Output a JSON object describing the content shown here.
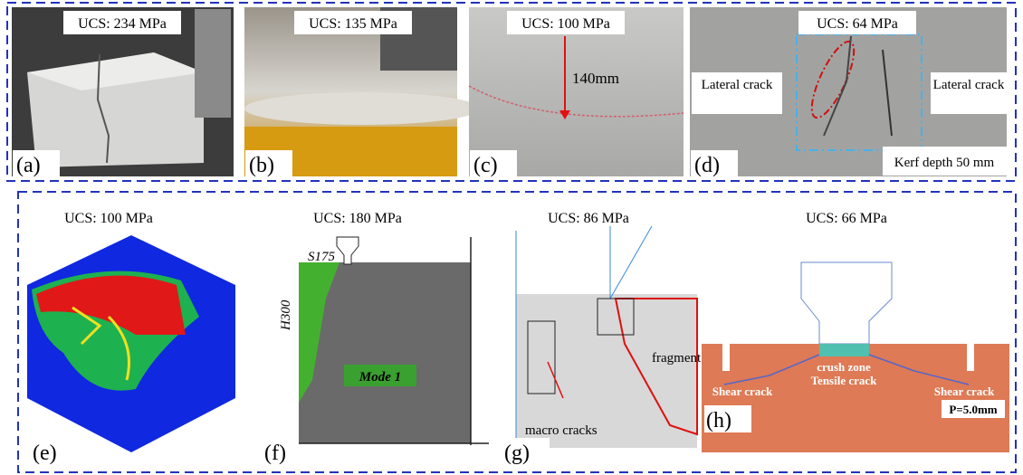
{
  "panels": [
    {
      "label": "(a)",
      "ucs": "UCS: 234 MPa"
    },
    {
      "label": "(b)",
      "ucs": "UCS: 135 MPa"
    },
    {
      "label": "(c)",
      "ucs": "UCS: 100 MPa",
      "annotations": [
        "140mm"
      ]
    },
    {
      "label": "(d)",
      "ucs": "UCS: 64 MPa",
      "annotations": [
        "Lateral crack",
        "Lateral crack",
        "Kerf depth 50 mm"
      ]
    },
    {
      "label": "(e)",
      "ucs": "UCS: 100 MPa"
    },
    {
      "label": "(f)",
      "ucs": "UCS: 180 MPa",
      "annotations": [
        "S175",
        "H300",
        "Mode 1"
      ]
    },
    {
      "label": "(g)",
      "ucs": "UCS: 86 MPa",
      "annotations": [
        "fragment",
        "macro cracks"
      ]
    },
    {
      "label": "(h)",
      "ucs": "UCS: 66 MPa",
      "annotations": [
        "crush zone",
        "Tensile crack",
        "Shear crack",
        "Shear crack",
        "P=5.0mm"
      ]
    }
  ]
}
